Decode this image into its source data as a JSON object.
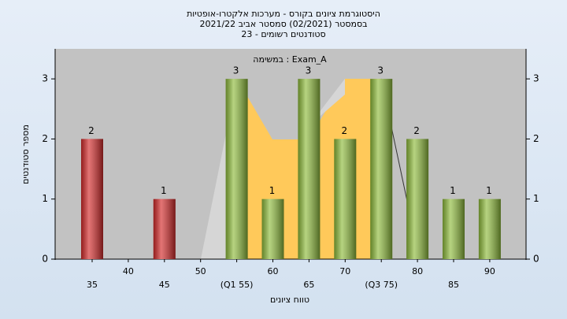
{
  "chart_data": {
    "type": "bar",
    "title": [
      "היסטוגרמת ציונים בקורס - מערכות אלקטרו-אופטיות",
      "בסמסטר  (02/2021)  סמסטר אביב 2021/22",
      "סטודנטים רשומים - 23"
    ],
    "subtitle": "במשימה : Exam_A",
    "xlabel": "טווח ציונים",
    "ylabel": "מספר סטודנטים",
    "categories": [
      "35",
      "40",
      "45",
      "50",
      "(Q1 55)",
      "60",
      "65",
      "70",
      "(Q3 75)",
      "80",
      "85",
      "90"
    ],
    "values": [
      2,
      0,
      1,
      0,
      3,
      1,
      3,
      2,
      3,
      2,
      1,
      1
    ],
    "value_labels": [
      "2",
      null,
      "1",
      null,
      "3",
      "1",
      "3",
      "2",
      "3",
      "2",
      "1",
      "1"
    ],
    "colors": [
      "#d42a2a",
      "#d42a2a",
      "#d42a2a",
      "#d42a2a",
      "#8fbc3c",
      "#8fbc3c",
      "#8fbc3c",
      "#8fbc3c",
      "#8fbc3c",
      "#8fbc3c",
      "#8fbc3c",
      "#8fbc3c"
    ],
    "ylim": [
      0,
      3.5
    ],
    "yticks": [
      0,
      1,
      2,
      3
    ],
    "grid": false
  }
}
